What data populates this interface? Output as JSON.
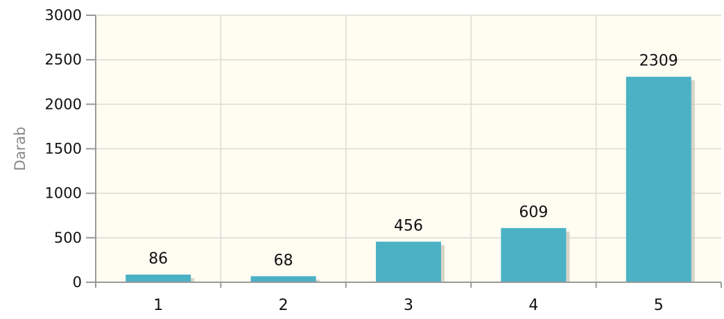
{
  "chart_data": {
    "type": "bar",
    "categories": [
      "1",
      "2",
      "3",
      "4",
      "5"
    ],
    "values": [
      86,
      68,
      456,
      609,
      2309
    ],
    "data_labels": [
      "86",
      "68",
      "456",
      "609",
      "2309"
    ],
    "title": "",
    "xlabel": "",
    "ylabel": "Darab",
    "ylim": [
      0,
      3000
    ],
    "yticks": [
      0,
      500,
      1000,
      1500,
      2000,
      2500,
      3000
    ],
    "ytick_labels": [
      "0",
      "500",
      "1000",
      "1500",
      "2000",
      "2500",
      "3000"
    ],
    "grid": true,
    "legend": "none"
  },
  "colors": {
    "bar": "#4bb1c5",
    "bar_shadow": "#c8c4b4",
    "plot_background": "#fffcf2",
    "grid": "#dcdad2",
    "axis": "#999999",
    "text": "#111111",
    "ylabel_text": "#8a8a8a"
  }
}
